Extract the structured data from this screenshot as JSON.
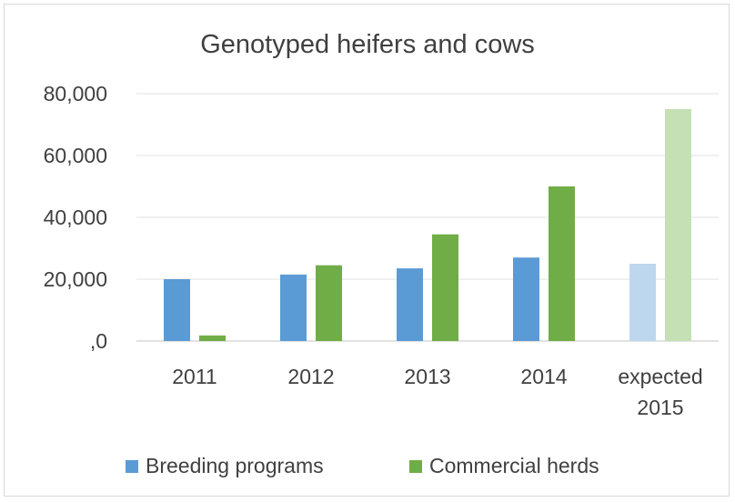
{
  "chart_data": {
    "type": "bar",
    "title": "Genotyped heifers and cows",
    "xlabel": "",
    "ylabel": "",
    "categories": [
      [
        "2011"
      ],
      [
        "2012"
      ],
      [
        "2013"
      ],
      [
        "2014"
      ],
      [
        "expected",
        "2015"
      ]
    ],
    "series": [
      {
        "name": "Breeding programs",
        "color": "#5b9bd5",
        "values": [
          20000,
          21500,
          23500,
          27000,
          25000
        ],
        "colors": [
          "#5b9bd5",
          "#5b9bd5",
          "#5b9bd5",
          "#5b9bd5",
          "#bdd7ee"
        ]
      },
      {
        "name": "Commercial herds",
        "color": "#70ad47",
        "values": [
          1800,
          24500,
          34500,
          50000,
          75000
        ],
        "colors": [
          "#70ad47",
          "#70ad47",
          "#70ad47",
          "#70ad47",
          "#c5e0b4"
        ]
      }
    ],
    "ylim": [
      0,
      80000
    ],
    "yticks": [
      0,
      20000,
      40000,
      60000,
      80000
    ],
    "ytick_labels": [
      ",0",
      "20,000",
      "40,000",
      "60,000",
      "80,000"
    ],
    "grid": true,
    "legend_position": "bottom"
  }
}
